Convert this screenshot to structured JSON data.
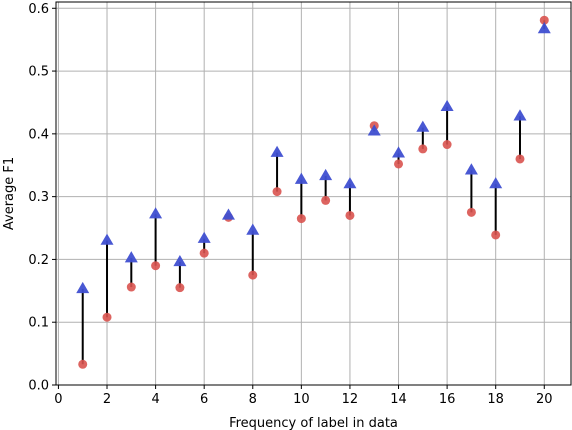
{
  "chart_data": {
    "type": "scatter",
    "title": "",
    "xlabel": "Frequency of label in data",
    "ylabel": "Average F1",
    "xlim": [
      -0.1,
      21.1
    ],
    "ylim": [
      0.0,
      0.61
    ],
    "x_ticks": [
      0,
      2,
      4,
      6,
      8,
      10,
      12,
      14,
      16,
      18,
      20
    ],
    "y_ticks": [
      0.0,
      0.1,
      0.2,
      0.3,
      0.4,
      0.5,
      0.6
    ],
    "x_tick_labels": [
      "0",
      "2",
      "4",
      "6",
      "8",
      "10",
      "12",
      "14",
      "16",
      "18",
      "20"
    ],
    "y_tick_labels": [
      "0.0",
      "0.1",
      "0.2",
      "0.3",
      "0.4",
      "0.5",
      "0.6"
    ],
    "grid": true,
    "legend": "none",
    "x": [
      1,
      2,
      3,
      4,
      5,
      6,
      7,
      8,
      9,
      10,
      11,
      12,
      13,
      14,
      15,
      16,
      17,
      18,
      19,
      20
    ],
    "series": [
      {
        "marker": "circle",
        "color": "#d9534f",
        "values": [
          0.033,
          0.108,
          0.156,
          0.19,
          0.155,
          0.21,
          0.267,
          0.175,
          0.308,
          0.265,
          0.294,
          0.27,
          0.413,
          0.352,
          0.376,
          0.383,
          0.275,
          0.239,
          0.36,
          0.581
        ]
      },
      {
        "marker": "triangle",
        "color": "#3f4fd1",
        "values": [
          0.153,
          0.23,
          0.202,
          0.272,
          0.196,
          0.233,
          0.27,
          0.246,
          0.37,
          0.327,
          0.333,
          0.32,
          0.404,
          0.369,
          0.41,
          0.443,
          0.342,
          0.32,
          0.428,
          0.567
        ]
      }
    ],
    "connector_color": "#000000"
  }
}
